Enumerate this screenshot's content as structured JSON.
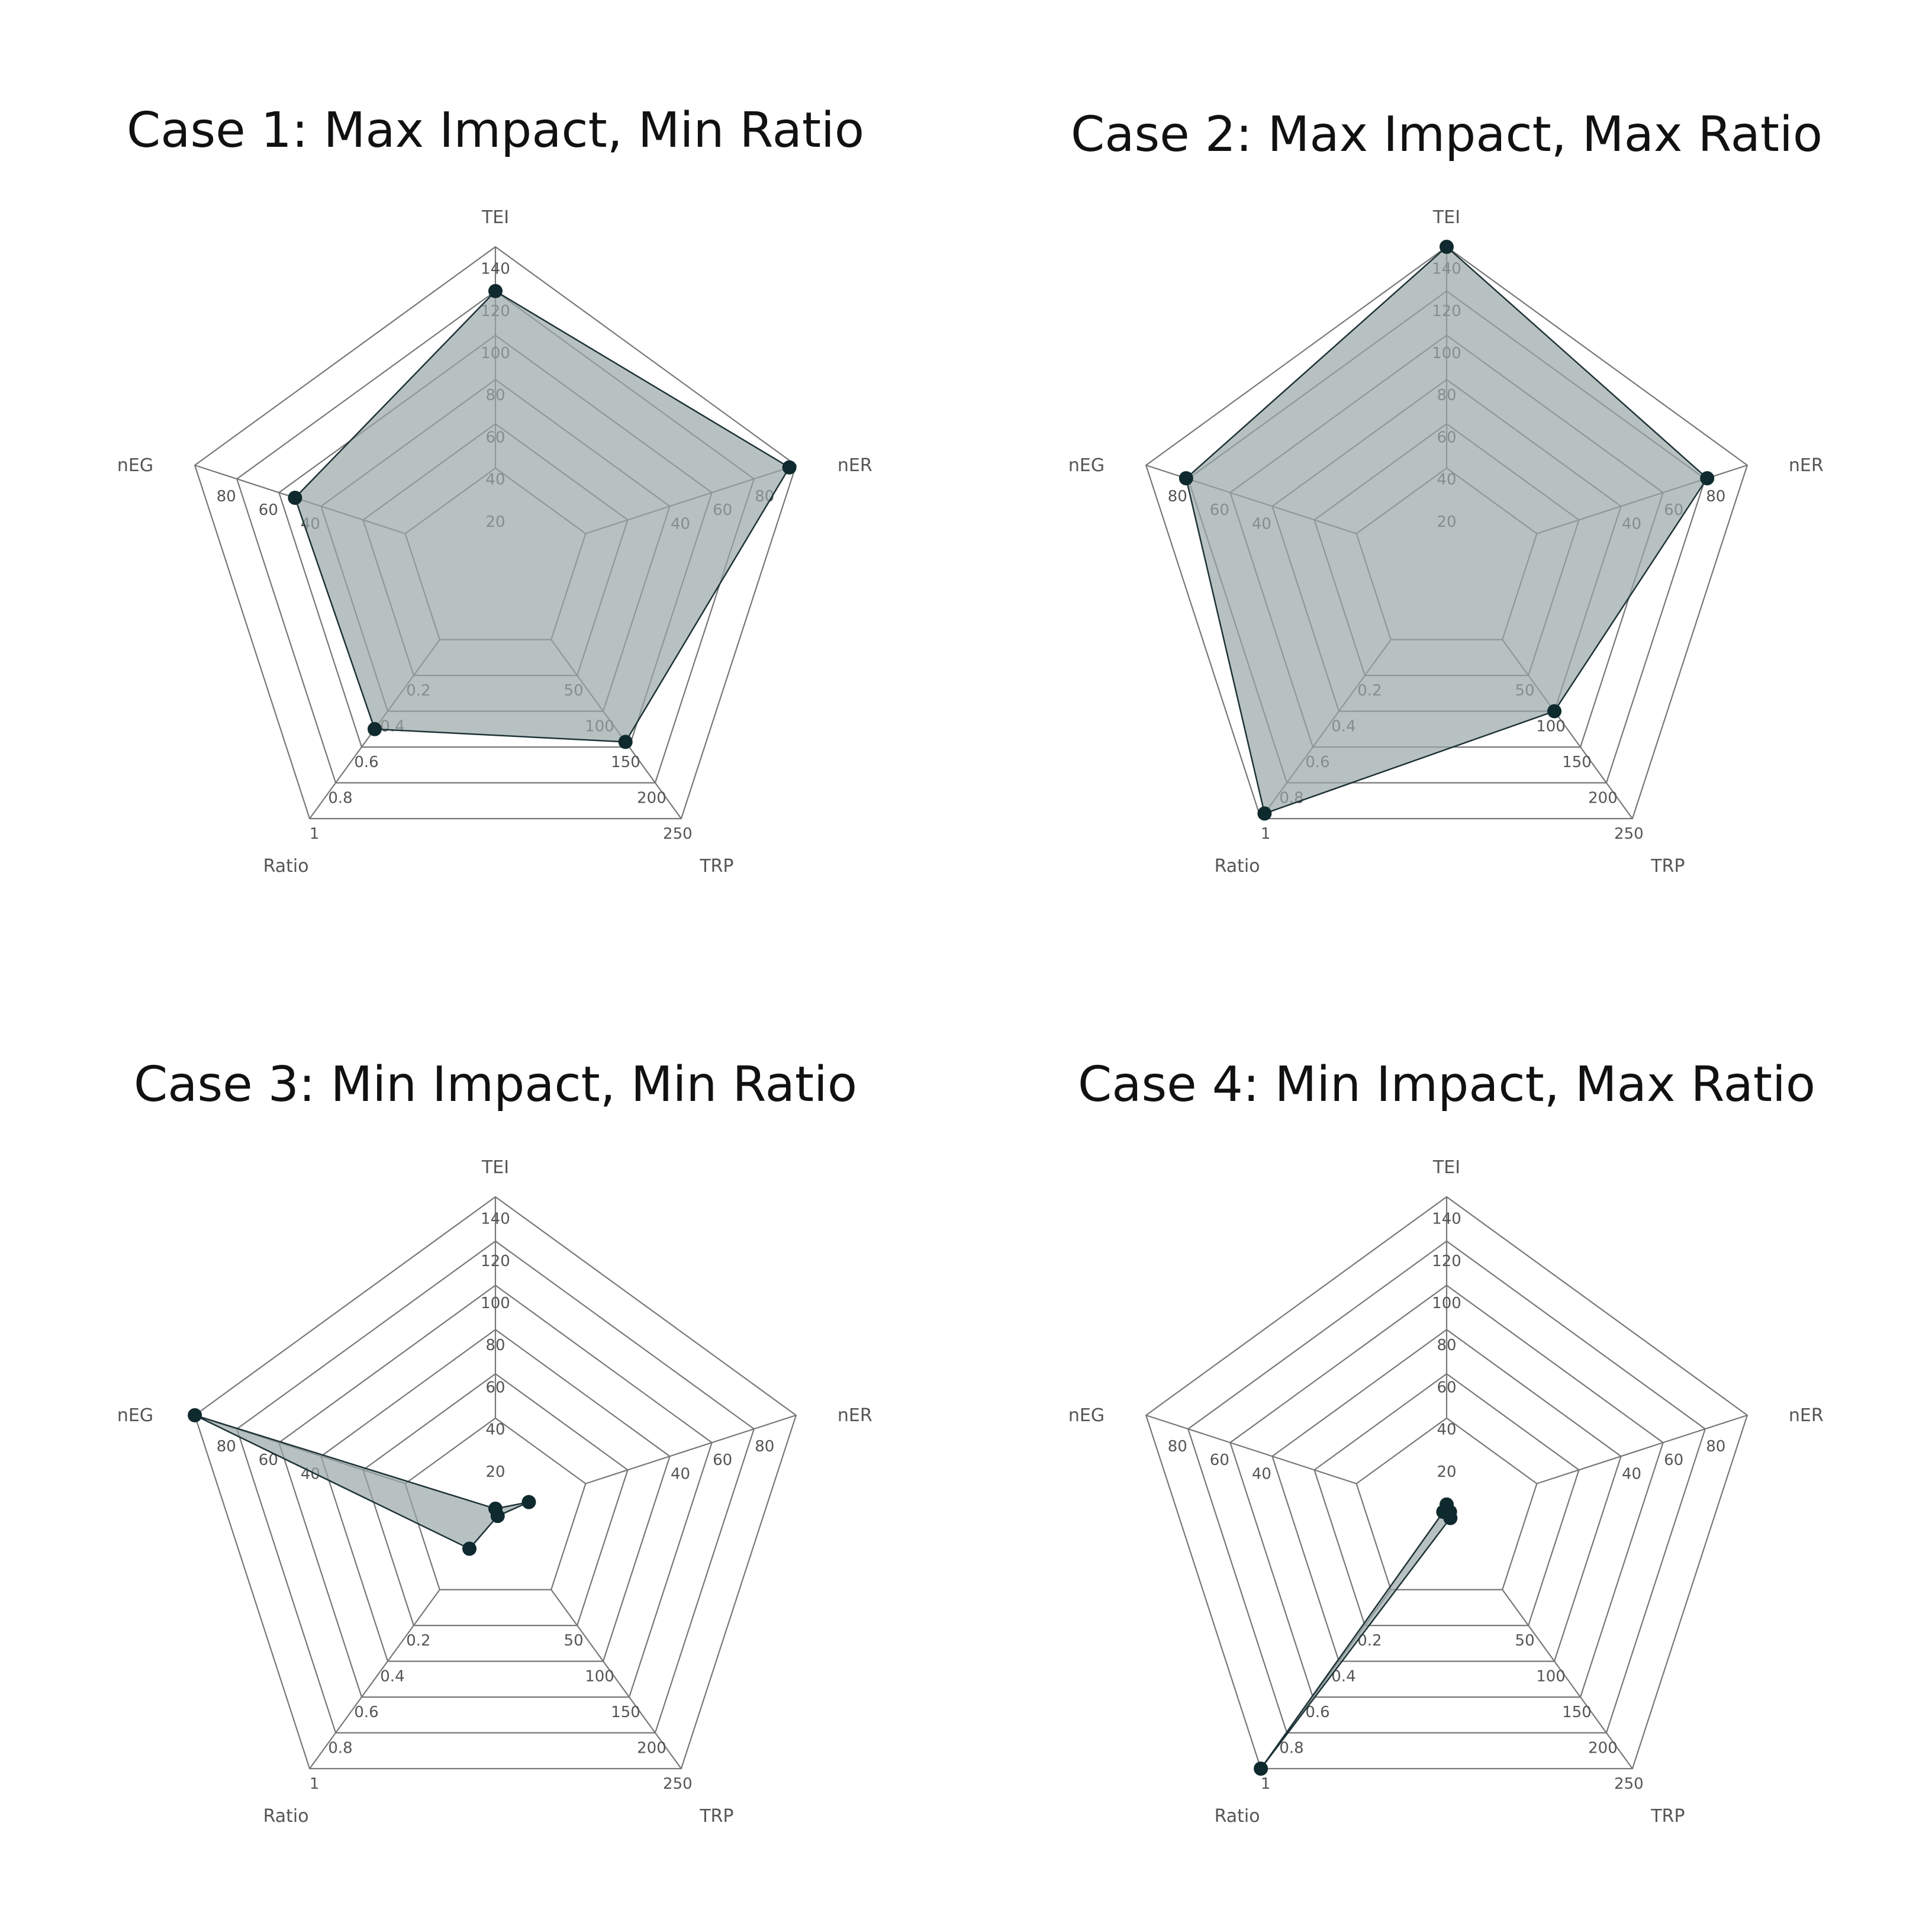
{
  "figure": {
    "background": "#ffffff",
    "grid_color": "#777777",
    "fill_color": "#9aa6a6",
    "point_color": "#0f2a2e"
  },
  "axes": [
    {
      "name": "TEI",
      "max": 150,
      "ticks": [
        20,
        40,
        60,
        80,
        100,
        120,
        140
      ]
    },
    {
      "name": "nER",
      "max": 90,
      "ticks": [
        40,
        60,
        80
      ]
    },
    {
      "name": "TRP",
      "max": 250,
      "ticks": [
        50,
        100,
        150,
        200,
        250
      ]
    },
    {
      "name": "Ratio",
      "max": 1,
      "ticks": [
        0.2,
        0.4,
        0.6,
        0.8,
        1
      ]
    },
    {
      "name": "nEG",
      "max": 90,
      "ticks": [
        40,
        60,
        80
      ]
    }
  ],
  "chart_data": [
    {
      "type": "radar",
      "title": "Case 1: Max Impact, Min Ratio",
      "axes": [
        "TEI",
        "nER",
        "TRP",
        "Ratio",
        "nEG"
      ],
      "values": [
        129,
        88,
        175,
        0.65,
        60
      ],
      "rings": 6,
      "grid": true
    },
    {
      "type": "radar",
      "title": "Case 2: Max Impact, Max Ratio",
      "axes": [
        "TEI",
        "nER",
        "TRP",
        "Ratio",
        "nEG"
      ],
      "values": [
        150,
        78,
        145,
        0.98,
        78
      ],
      "rings": 6,
      "grid": true
    },
    {
      "type": "radar",
      "title": "Case 3: Min Impact, Min Ratio",
      "axes": [
        "TEI",
        "nER",
        "TRP",
        "Ratio",
        "nEG"
      ],
      "values": [
        2,
        10,
        3,
        0.14,
        90
      ],
      "rings": 6,
      "grid": true
    },
    {
      "type": "radar",
      "title": "Case 4: Min Impact, Max Ratio",
      "axes": [
        "TEI",
        "nER",
        "TRP",
        "Ratio",
        "nEG"
      ],
      "values": [
        4,
        1,
        5,
        1,
        1
      ],
      "rings": 6,
      "grid": true
    }
  ]
}
